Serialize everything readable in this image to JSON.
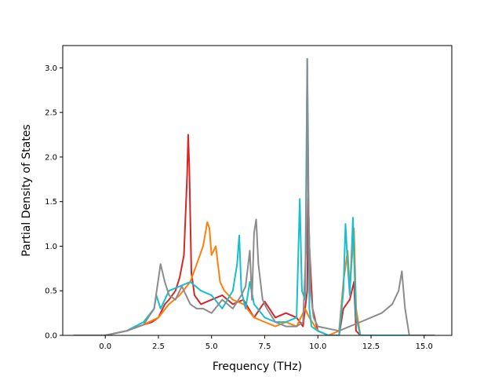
{
  "chart_data": {
    "type": "line",
    "xlabel": "Frequency (THz)",
    "ylabel": "Partial Density of States",
    "xlim": [
      -2.0,
      16.3
    ],
    "ylim": [
      0,
      3.25
    ],
    "xticks": [
      "0.0",
      "2.5",
      "5.0",
      "7.5",
      "10.0",
      "12.5",
      "15.0"
    ],
    "yticks": [
      "0.0",
      "0.5",
      "1.0",
      "1.5",
      "2.0",
      "2.5",
      "3.0"
    ],
    "grid": false,
    "legend": "none",
    "series": [
      {
        "color": "#d62728",
        "x": [
          -1.5,
          0.0,
          1.0,
          1.8,
          2.2,
          2.5,
          2.8,
          3.0,
          3.3,
          3.5,
          3.7,
          3.85,
          3.9,
          3.95,
          4.05,
          4.2,
          4.5,
          5.0,
          5.5,
          6.0,
          6.5,
          7.0,
          7.5,
          8.0,
          8.5,
          9.0,
          9.3,
          9.5,
          9.55,
          9.6,
          9.75,
          10.0,
          10.5,
          11.0,
          11.2,
          11.5,
          11.7,
          11.8,
          12.0,
          15.5
        ],
        "y": [
          0.0,
          0.0,
          0.05,
          0.12,
          0.15,
          0.2,
          0.35,
          0.4,
          0.5,
          0.65,
          0.9,
          1.8,
          2.25,
          1.9,
          0.7,
          0.45,
          0.35,
          0.4,
          0.45,
          0.35,
          0.4,
          0.2,
          0.38,
          0.2,
          0.25,
          0.2,
          0.1,
          0.5,
          1.55,
          1.0,
          0.3,
          0.05,
          0.0,
          0.0,
          0.3,
          0.4,
          0.6,
          0.05,
          0.0,
          0.0
        ]
      },
      {
        "color": "#ff7f0e",
        "x": [
          -1.5,
          0.0,
          1.0,
          1.8,
          2.5,
          3.0,
          3.5,
          4.0,
          4.3,
          4.6,
          4.8,
          4.9,
          5.0,
          5.2,
          5.4,
          5.6,
          5.8,
          6.0,
          6.5,
          7.0,
          7.5,
          8.0,
          8.5,
          9.0,
          9.4,
          9.6,
          10.0,
          10.5,
          11.0,
          11.2,
          11.4,
          11.5,
          11.6,
          11.7,
          11.8,
          12.0,
          15.5
        ],
        "y": [
          0.0,
          0.0,
          0.05,
          0.12,
          0.2,
          0.35,
          0.45,
          0.6,
          0.8,
          1.0,
          1.27,
          1.2,
          0.9,
          1.0,
          0.6,
          0.5,
          0.45,
          0.4,
          0.35,
          0.2,
          0.15,
          0.1,
          0.15,
          0.1,
          0.3,
          0.2,
          0.05,
          0.0,
          0.05,
          0.6,
          0.95,
          0.5,
          0.85,
          1.2,
          0.3,
          0.0,
          0.0
        ]
      },
      {
        "color": "#17becf",
        "x": [
          -1.5,
          0.0,
          1.0,
          1.8,
          2.3,
          2.4,
          2.6,
          3.0,
          3.5,
          4.0,
          4.5,
          5.0,
          5.5,
          6.0,
          6.2,
          6.3,
          6.4,
          6.6,
          6.8,
          7.0,
          7.5,
          8.0,
          8.5,
          9.0,
          9.15,
          9.25,
          9.4,
          9.5,
          9.55,
          9.6,
          9.7,
          10.0,
          10.5,
          11.0,
          11.2,
          11.3,
          11.4,
          11.5,
          11.6,
          11.65,
          11.7,
          11.8,
          12.0,
          15.5
        ],
        "y": [
          0.0,
          0.0,
          0.05,
          0.15,
          0.3,
          0.45,
          0.3,
          0.5,
          0.55,
          0.6,
          0.5,
          0.45,
          0.3,
          0.5,
          0.8,
          1.12,
          0.5,
          0.3,
          0.6,
          0.35,
          0.2,
          0.15,
          0.15,
          0.2,
          1.53,
          0.5,
          0.4,
          3.1,
          2.0,
          0.3,
          0.1,
          0.05,
          0.0,
          0.0,
          0.5,
          1.25,
          0.8,
          0.45,
          1.0,
          1.32,
          0.9,
          0.2,
          0.0,
          0.0
        ]
      },
      {
        "color": "#8c8c8c",
        "x": [
          -1.5,
          0.0,
          1.0,
          1.8,
          2.3,
          2.6,
          2.8,
          3.0,
          3.3,
          3.6,
          4.0,
          4.3,
          4.6,
          5.0,
          5.5,
          6.0,
          6.4,
          6.6,
          6.8,
          6.9,
          7.0,
          7.1,
          7.2,
          7.4,
          7.6,
          8.0,
          8.5,
          9.0,
          9.3,
          9.45,
          9.5,
          9.55,
          9.65,
          9.8,
          10.0,
          11.0,
          11.5,
          12.0,
          12.5,
          13.0,
          13.5,
          13.8,
          13.95,
          14.1,
          14.3,
          15.5
        ],
        "y": [
          0.0,
          0.0,
          0.05,
          0.12,
          0.3,
          0.8,
          0.6,
          0.45,
          0.4,
          0.55,
          0.35,
          0.3,
          0.3,
          0.25,
          0.4,
          0.3,
          0.45,
          0.55,
          0.95,
          0.4,
          1.15,
          1.3,
          0.8,
          0.4,
          0.3,
          0.15,
          0.1,
          0.1,
          0.15,
          1.0,
          3.1,
          1.6,
          0.5,
          0.2,
          0.1,
          0.05,
          0.1,
          0.15,
          0.2,
          0.25,
          0.35,
          0.5,
          0.72,
          0.3,
          0.0,
          0.0
        ]
      }
    ]
  }
}
